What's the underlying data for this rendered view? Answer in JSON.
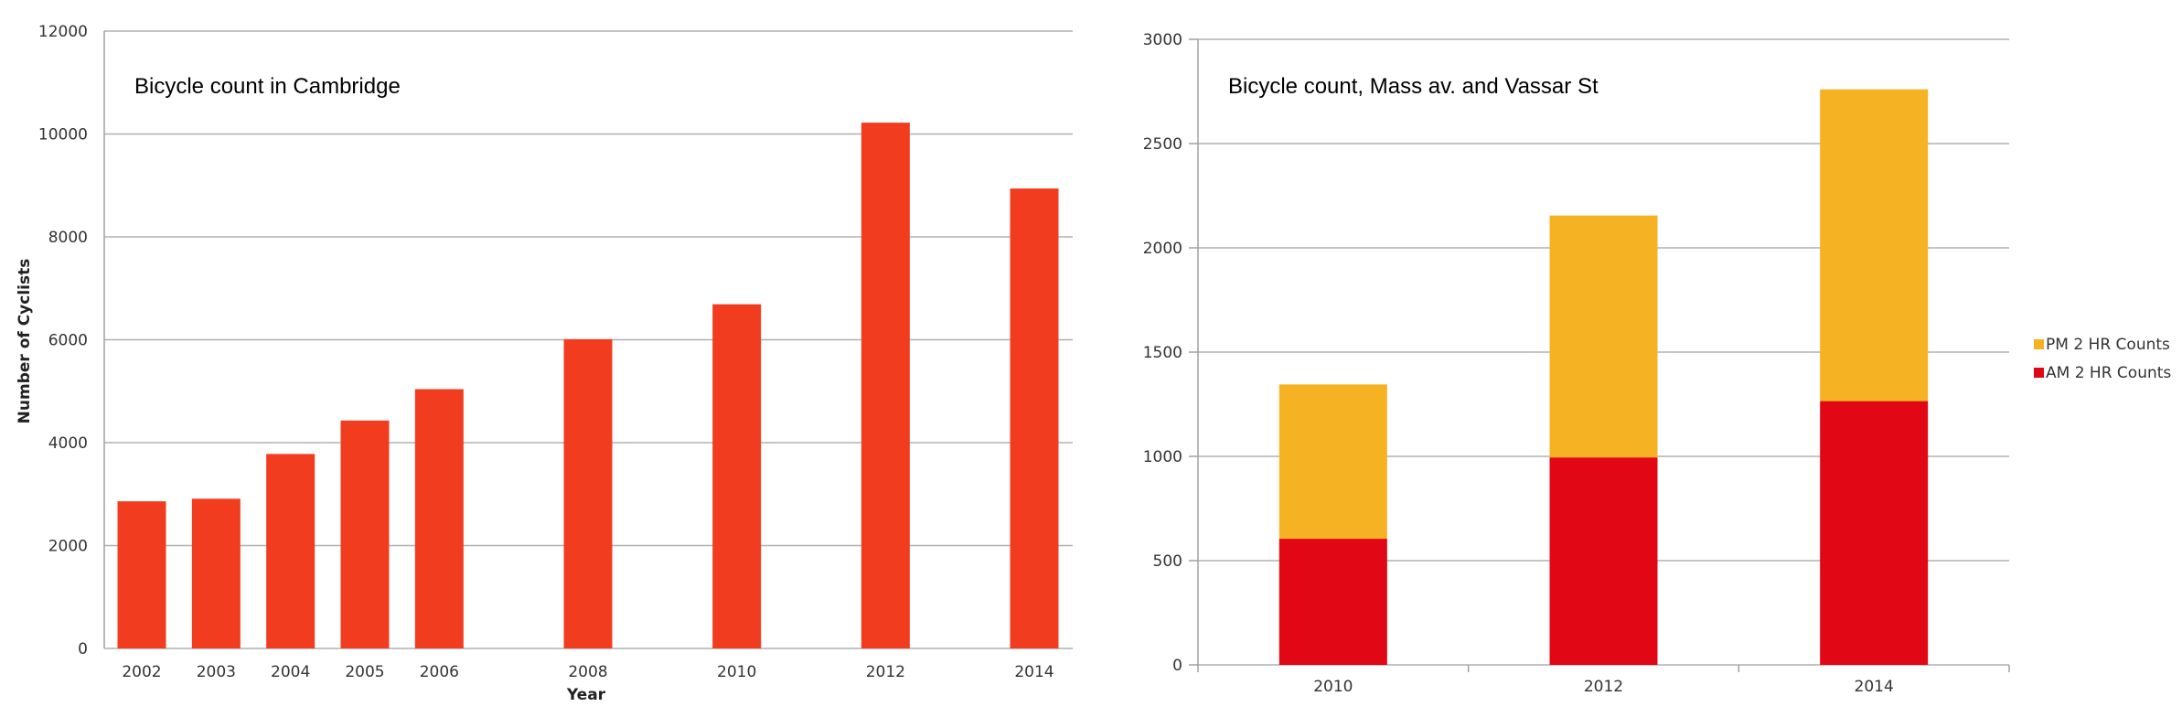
{
  "colors": {
    "bar_left": "#f23c1f",
    "am": "#e20715",
    "pm": "#f5b223",
    "grid": "#b0b0b0",
    "axis": "#a0a0a0"
  },
  "chart_data": [
    {
      "type": "bar",
      "title": "Bicycle count in Cambridge",
      "xlabel": "Year",
      "ylabel": "Number of Cyclists",
      "ylim": [
        0,
        12000
      ],
      "yticks": [
        0,
        2000,
        4000,
        6000,
        8000,
        10000,
        12000
      ],
      "x": [
        2002,
        2003,
        2004,
        2005,
        2006,
        2008,
        2010,
        2012,
        2014
      ],
      "x_tick_labels": [
        "2002",
        "2003",
        "2004",
        "2005",
        "2006",
        "2008",
        "2010",
        "2012",
        "2014"
      ],
      "values": [
        2860,
        2910,
        3780,
        4430,
        5040,
        6010,
        6690,
        10220,
        8940
      ],
      "grid": true
    },
    {
      "type": "bar",
      "stacked": true,
      "title": "Bicycle count, Mass av. and Vassar St",
      "categories": [
        "2010",
        "2012",
        "2014"
      ],
      "ylim": [
        0,
        3000
      ],
      "yticks": [
        0,
        500,
        1000,
        1500,
        2000,
        2500,
        3000
      ],
      "series": [
        {
          "name": "AM 2 HR Counts",
          "values": [
            605,
            995,
            1265
          ]
        },
        {
          "name": "PM 2 HR Counts",
          "values": [
            740,
            1160,
            1495
          ]
        }
      ],
      "legend_position": "right",
      "grid": true
    }
  ]
}
